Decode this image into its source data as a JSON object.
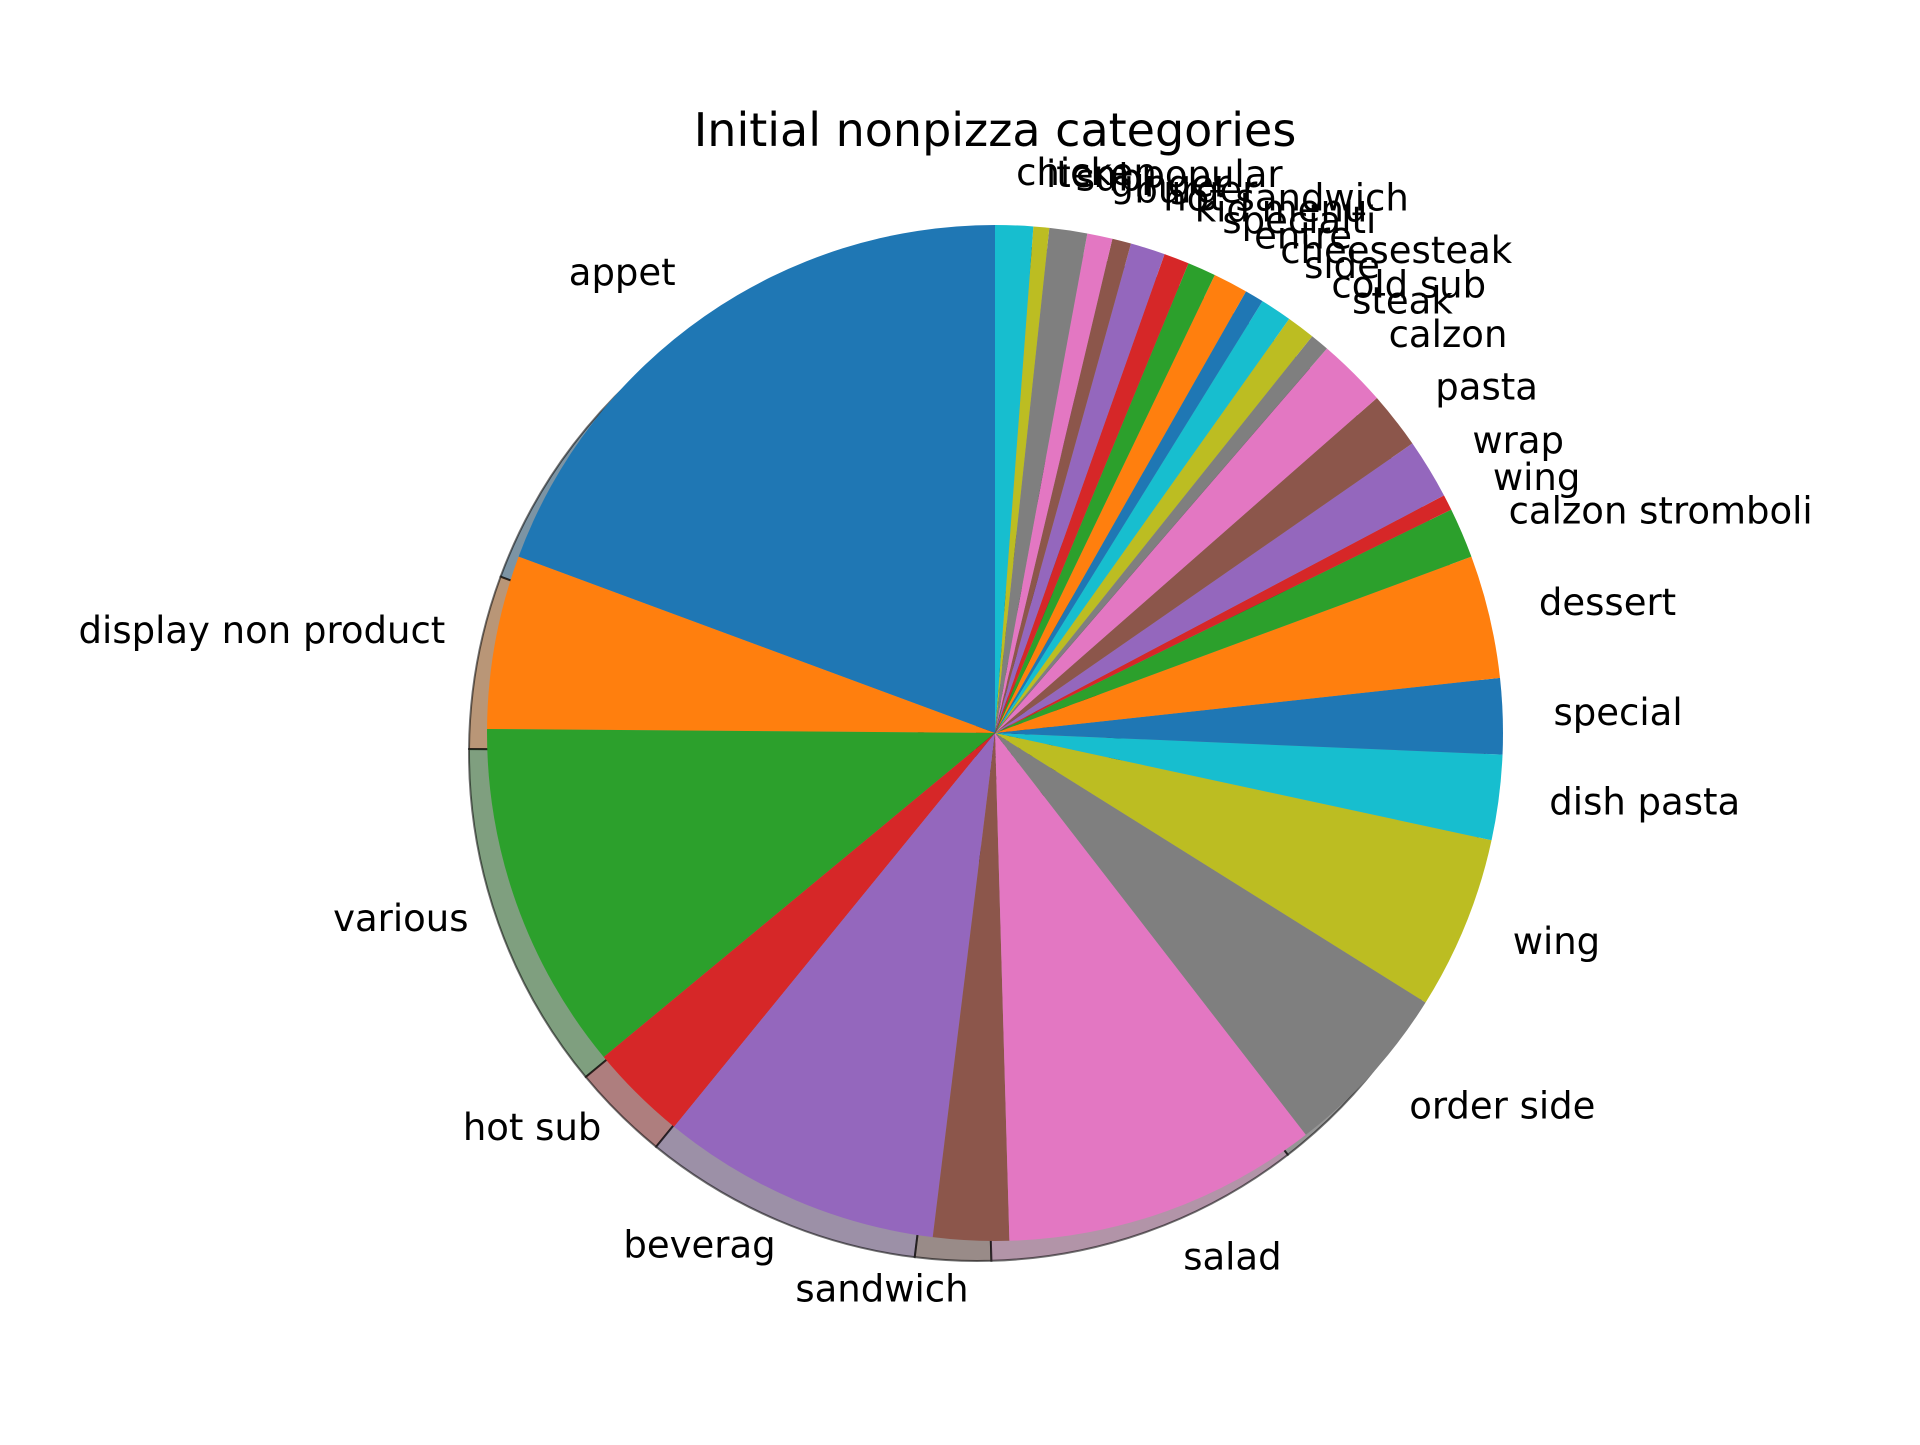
{
  "chart_data": {
    "type": "pie",
    "title": "Initial nonpizza categories",
    "shadow": true,
    "start_angle_deg": 90,
    "direction": "counterclockwise",
    "slices": [
      {
        "label": "appet",
        "value": 19.3,
        "color": "#1f77b4"
      },
      {
        "label": "display non product",
        "value": 5.5,
        "color": "#ff7f0e"
      },
      {
        "label": "various",
        "value": 11.1,
        "color": "#2ca02c"
      },
      {
        "label": "hot sub",
        "value": 3.1,
        "color": "#d62728"
      },
      {
        "label": "beverag",
        "value": 8.9,
        "color": "#9467bd"
      },
      {
        "label": "sandwich",
        "value": 2.4,
        "color": "#8c564b"
      },
      {
        "label": "salad",
        "value": 10.0,
        "color": "#e377c2"
      },
      {
        "label": "order side",
        "value": 5.6,
        "color": "#7f7f7f"
      },
      {
        "label": "wing",
        "value": 5.5,
        "color": "#bcbd22"
      },
      {
        "label": "dish pasta",
        "value": 2.7,
        "color": "#17becf"
      },
      {
        "label": "special",
        "value": 2.4,
        "color": "#1f77b4"
      },
      {
        "label": "dessert",
        "value": 3.9,
        "color": "#ff7f0e"
      },
      {
        "label": "calzon stromboli",
        "value": 1.6,
        "color": "#2ca02c"
      },
      {
        "label": "wing",
        "value": 0.5,
        "color": "#d62728"
      },
      {
        "label": "wrap",
        "value": 1.9,
        "color": "#9467bd"
      },
      {
        "label": "pasta",
        "value": 1.8,
        "color": "#8c564b"
      },
      {
        "label": "calzon",
        "value": 2.2,
        "color": "#e377c2"
      },
      {
        "label": "steak",
        "value": 0.6,
        "color": "#7f7f7f"
      },
      {
        "label": "cold sub",
        "value": 0.9,
        "color": "#bcbd22"
      },
      {
        "label": "side",
        "value": 1.0,
        "color": "#17becf"
      },
      {
        "label": "cheesesteak",
        "value": 0.6,
        "color": "#1f77b4"
      },
      {
        "label": "entre",
        "value": 1.1,
        "color": "#ff7f0e"
      },
      {
        "label": "specialti",
        "value": 0.9,
        "color": "#2ca02c"
      },
      {
        "label": "kid menu",
        "value": 0.8,
        "color": "#d62728"
      },
      {
        "label": "hot sandwich",
        "value": 1.1,
        "color": "#9467bd"
      },
      {
        "label": "burger",
        "value": 0.6,
        "color": "#8c564b"
      },
      {
        "label": "ginger",
        "value": 0.8,
        "color": "#e377c2"
      },
      {
        "label": "sub",
        "value": 1.2,
        "color": "#7f7f7f"
      },
      {
        "label": "item popular",
        "value": 0.5,
        "color": "#bcbd22"
      },
      {
        "label": "chicken",
        "value": 1.2,
        "color": "#17becf"
      }
    ]
  }
}
